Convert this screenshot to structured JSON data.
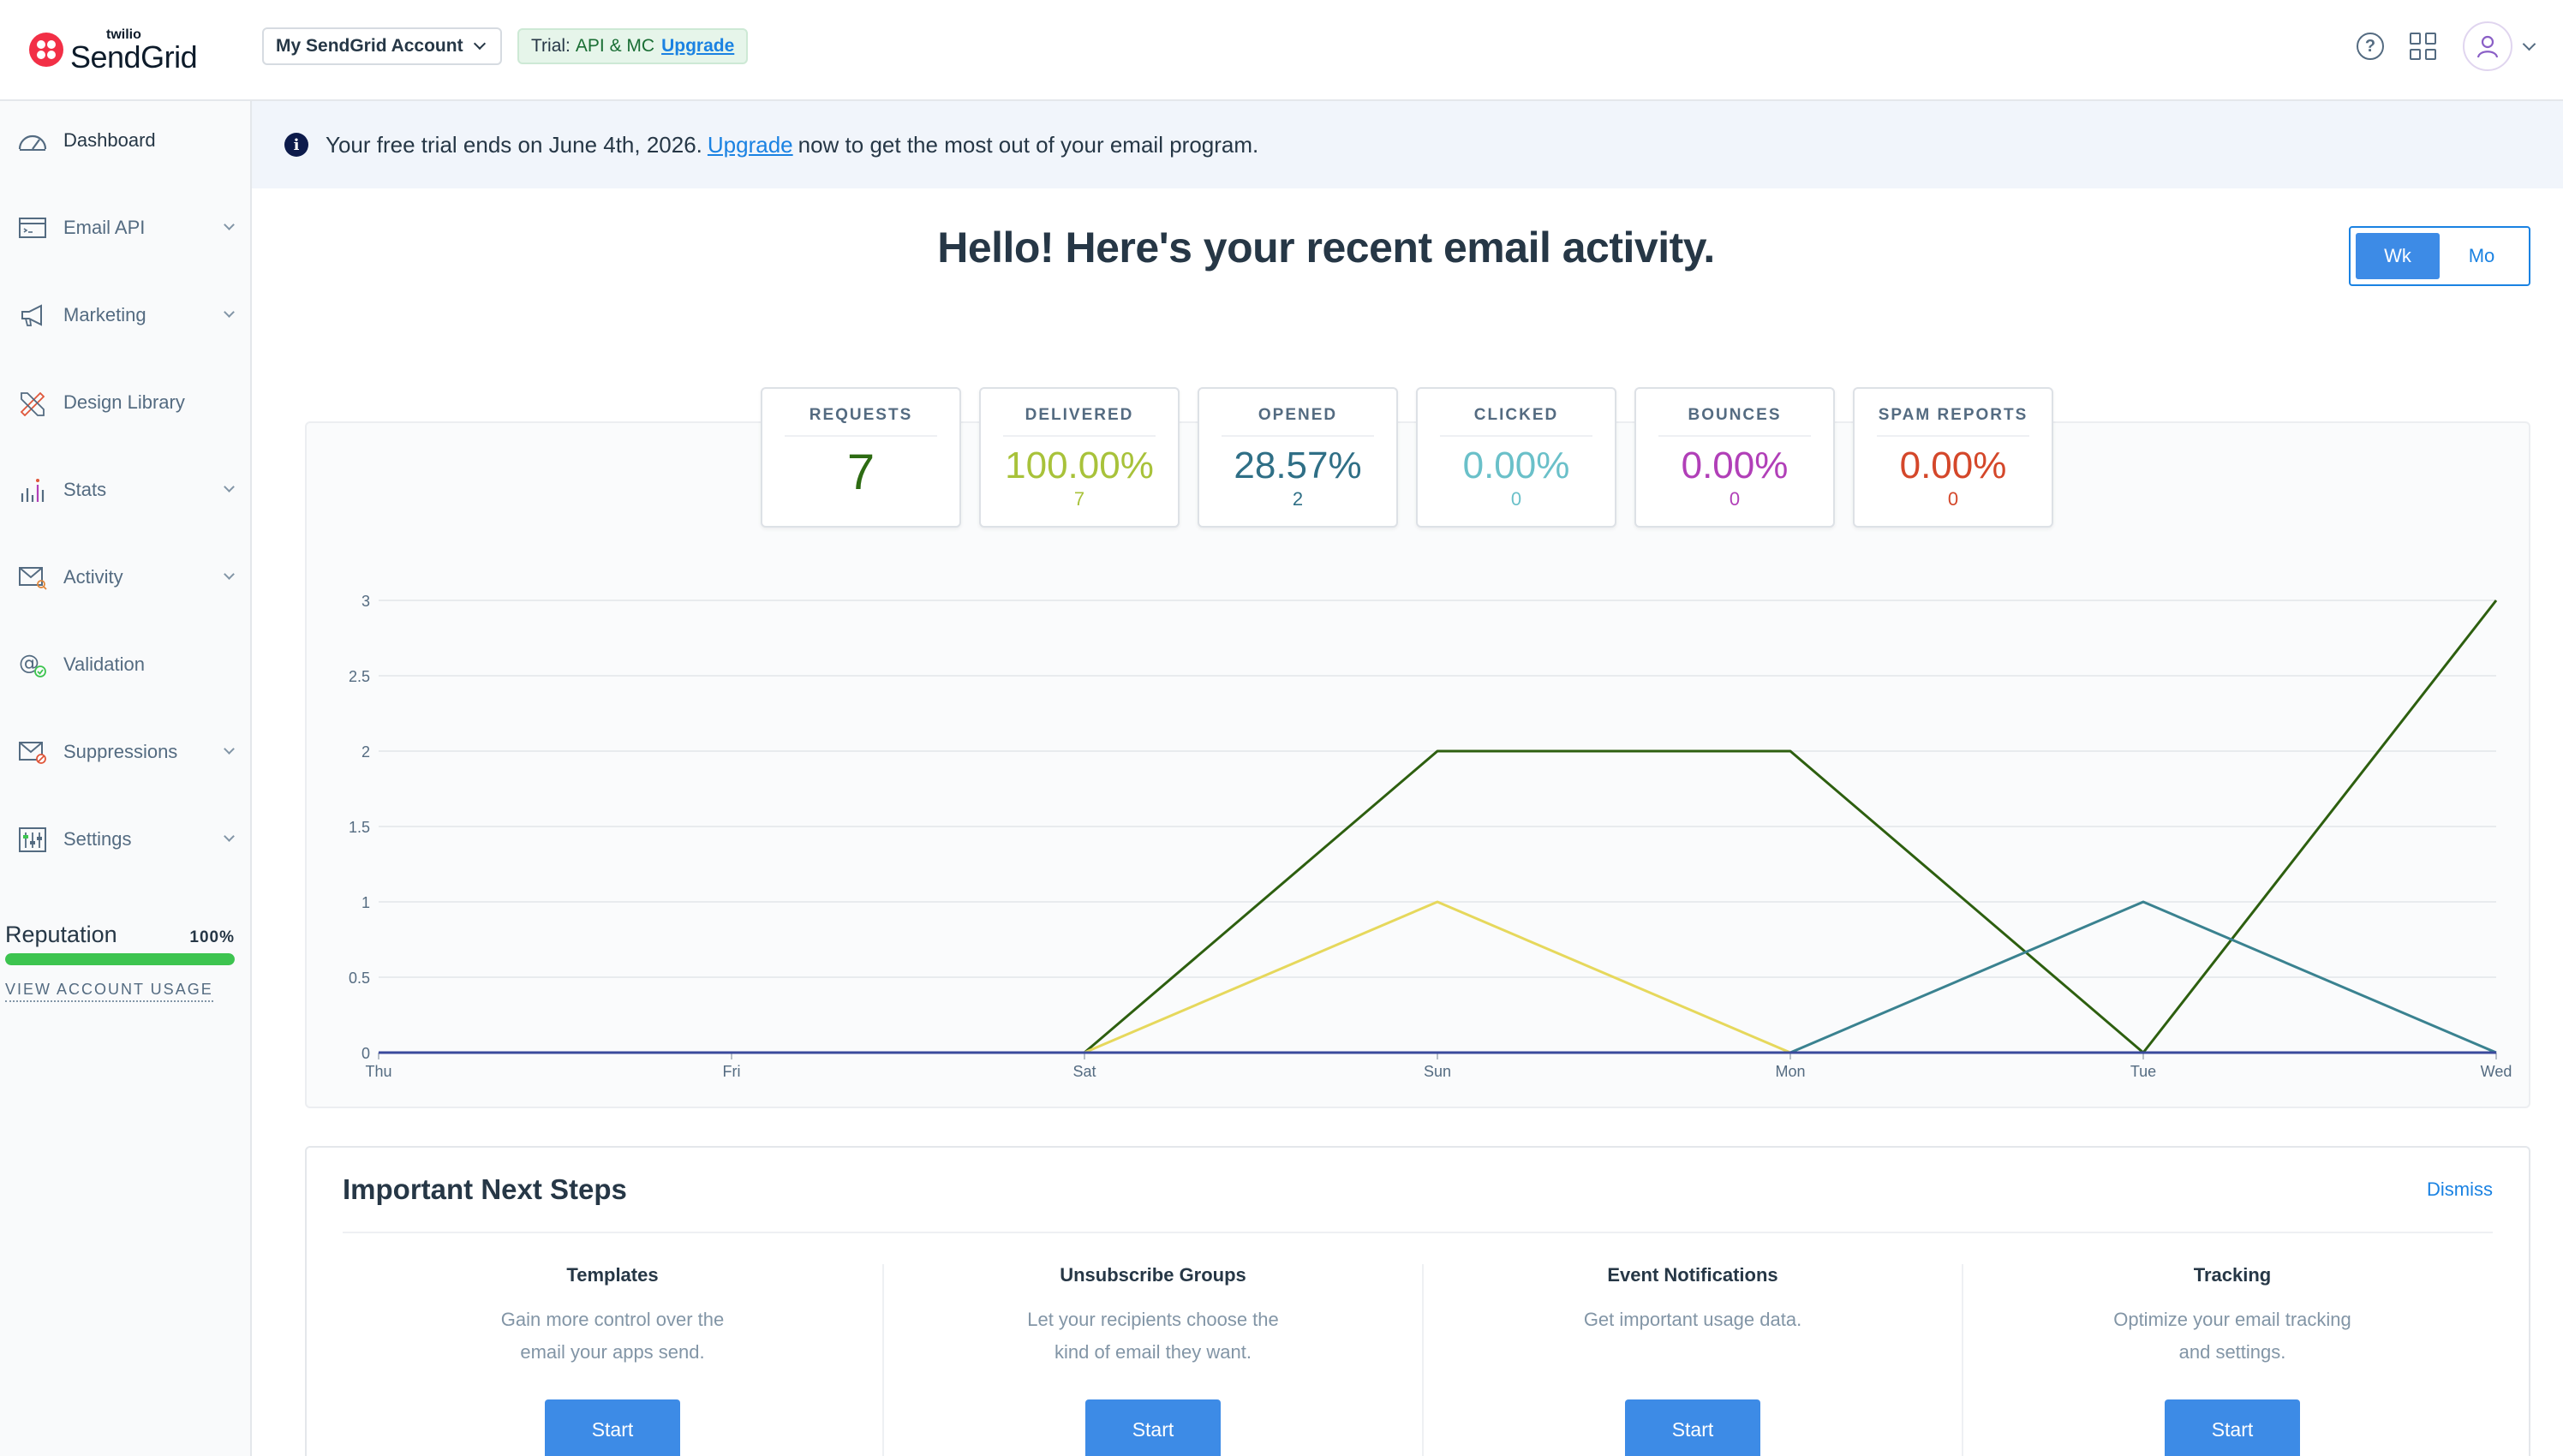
{
  "header": {
    "logo_small": "twilio",
    "logo_big": "SendGrid",
    "account_label": "My SendGrid Account",
    "trial_prefix": "Trial:",
    "trial_plan": "API & MC",
    "trial_upgrade": "Upgrade"
  },
  "sidebar": {
    "items": [
      {
        "label": "Dashboard",
        "icon": "dashboard-icon",
        "has_chevron": false
      },
      {
        "label": "Email API",
        "icon": "email-api-icon",
        "has_chevron": true
      },
      {
        "label": "Marketing",
        "icon": "megaphone-icon",
        "has_chevron": true
      },
      {
        "label": "Design Library",
        "icon": "design-library-icon",
        "has_chevron": false
      },
      {
        "label": "Stats",
        "icon": "stats-icon",
        "has_chevron": true
      },
      {
        "label": "Activity",
        "icon": "activity-icon",
        "has_chevron": true
      },
      {
        "label": "Validation",
        "icon": "validation-icon",
        "has_chevron": false
      },
      {
        "label": "Suppressions",
        "icon": "suppressions-icon",
        "has_chevron": true
      },
      {
        "label": "Settings",
        "icon": "settings-icon",
        "has_chevron": true
      }
    ],
    "reputation_label": "Reputation",
    "reputation_value": "100%",
    "reputation_fraction": 1.0,
    "account_usage_link": "VIEW ACCOUNT USAGE"
  },
  "banner": {
    "text_before": "Your free trial ends on June 4th, 2026.",
    "link": "Upgrade",
    "text_after": "now to get the most out of your email program."
  },
  "main": {
    "heading": "Hello! Here's your recent email activity.",
    "toggle_week": "Wk",
    "toggle_month": "Mo"
  },
  "stats": [
    {
      "title": "REQUESTS",
      "value": "7",
      "sub": "",
      "color": "#2d6b12"
    },
    {
      "title": "DELIVERED",
      "value": "100.00%",
      "sub": "7",
      "color": "#a8c23a"
    },
    {
      "title": "OPENED",
      "value": "28.57%",
      "sub": "2",
      "color": "#2f6f86"
    },
    {
      "title": "CLICKED",
      "value": "0.00%",
      "sub": "0",
      "color": "#6ac0c9"
    },
    {
      "title": "BOUNCES",
      "value": "0.00%",
      "sub": "0",
      "color": "#b13fb8"
    },
    {
      "title": "SPAM REPORTS",
      "value": "0.00%",
      "sub": "0",
      "color": "#d4472a"
    }
  ],
  "chart_data": {
    "type": "line",
    "categories": [
      "Thu",
      "Fri",
      "Sat",
      "Sun",
      "Mon",
      "Tue",
      "Wed"
    ],
    "y_ticks": [
      "0",
      "0.5",
      "1",
      "1.5",
      "2",
      "2.5",
      "3"
    ],
    "ylim": [
      0,
      3
    ],
    "grid": true,
    "series": [
      {
        "values": [
          0,
          0,
          0,
          2,
          2,
          0,
          3
        ],
        "color": "#2d5f0f"
      },
      {
        "values": [
          0,
          0,
          0,
          1,
          0,
          0,
          0
        ],
        "color": "#e6d85c"
      },
      {
        "values": [
          0,
          0,
          0,
          0,
          0,
          1,
          0
        ],
        "color": "#3a8290"
      },
      {
        "values": [
          0,
          0,
          0,
          0,
          0,
          0,
          0
        ],
        "color": "#3a4a9c"
      }
    ]
  },
  "next_steps": {
    "title": "Important Next Steps",
    "dismiss": "Dismiss",
    "items": [
      {
        "title": "Templates",
        "desc": "Gain more control over the email your apps send.",
        "button": "Start"
      },
      {
        "title": "Unsubscribe Groups",
        "desc": "Let your recipients choose the kind of email they want.",
        "button": "Start"
      },
      {
        "title": "Event Notifications",
        "desc": "Get important usage data.",
        "button": "Start"
      },
      {
        "title": "Tracking",
        "desc": "Optimize your email tracking and settings.",
        "button": "Start"
      }
    ]
  }
}
